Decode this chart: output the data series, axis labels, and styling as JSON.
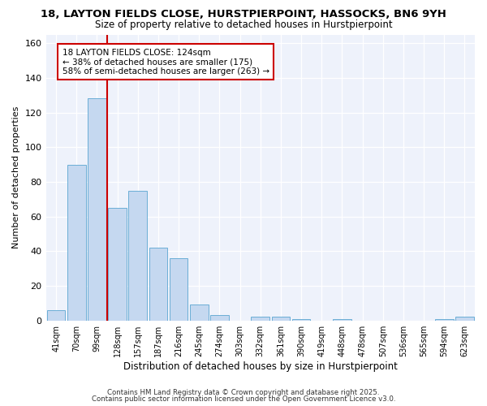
{
  "title": "18, LAYTON FIELDS CLOSE, HURSTPIERPOINT, HASSOCKS, BN6 9YH",
  "subtitle": "Size of property relative to detached houses in Hurstpierpoint",
  "xlabel": "Distribution of detached houses by size in Hurstpierpoint",
  "ylabel": "Number of detached properties",
  "bar_labels": [
    "41sqm",
    "70sqm",
    "99sqm",
    "128sqm",
    "157sqm",
    "187sqm",
    "216sqm",
    "245sqm",
    "274sqm",
    "303sqm",
    "332sqm",
    "361sqm",
    "390sqm",
    "419sqm",
    "448sqm",
    "478sqm",
    "507sqm",
    "536sqm",
    "565sqm",
    "594sqm",
    "623sqm"
  ],
  "bar_values": [
    6,
    90,
    128,
    65,
    75,
    42,
    36,
    9,
    3,
    0,
    2,
    2,
    1,
    0,
    1,
    0,
    0,
    0,
    0,
    1,
    2
  ],
  "bar_color": "#c5d8f0",
  "bar_edge_color": "#6baed6",
  "vline_color": "#cc0000",
  "annotation_title": "18 LAYTON FIELDS CLOSE: 124sqm",
  "annotation_line1": "← 38% of detached houses are smaller (175)",
  "annotation_line2": "58% of semi-detached houses are larger (263) →",
  "ylim": [
    0,
    165
  ],
  "yticks": [
    0,
    20,
    40,
    60,
    80,
    100,
    120,
    140,
    160
  ],
  "footer1": "Contains HM Land Registry data © Crown copyright and database right 2025.",
  "footer2": "Contains public sector information licensed under the Open Government Licence v3.0.",
  "bg_color": "#ffffff",
  "plot_bg_color": "#eef2fb"
}
